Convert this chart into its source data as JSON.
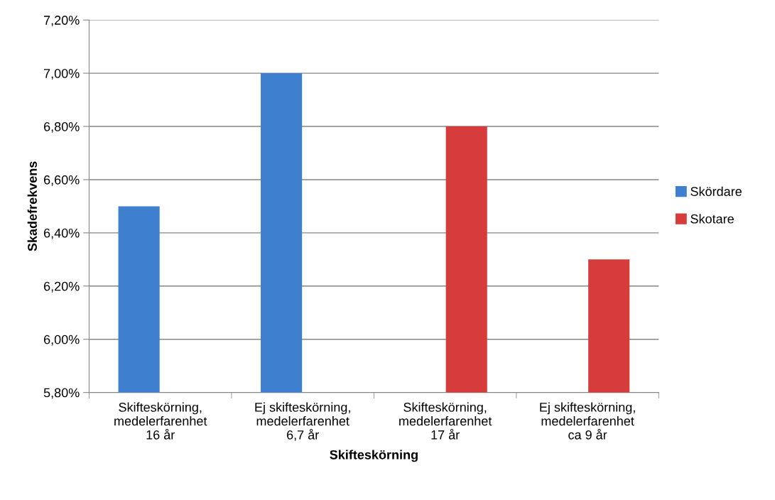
{
  "chart_data": {
    "type": "bar",
    "xlabel": "Skifteskörning",
    "ylabel": "Skadefrekvens",
    "categories": [
      "Skifteskörning,\nmedelerfarenhet\n16 år",
      "Ej skifteskörning,\nmedelerfarenhet\n6,7 år",
      "Skifteskörning,\nmedelerfarenhet\n17 år",
      "Ej skifteskörning,\nmedelerfarenhet\nca 9 år"
    ],
    "series": [
      {
        "name": "Skördare",
        "color": "#3f7fd0",
        "values": [
          6.5,
          7.0,
          null,
          null
        ]
      },
      {
        "name": "Skotare",
        "color": "#d63c3c",
        "values": [
          null,
          null,
          6.8,
          6.3
        ]
      }
    ],
    "ylim": [
      5.8,
      7.2
    ],
    "yticks": [
      {
        "value": 5.8,
        "label": "5,80%"
      },
      {
        "value": 6.0,
        "label": "6,00%"
      },
      {
        "value": 6.2,
        "label": "6,20%"
      },
      {
        "value": 6.4,
        "label": "6,40%"
      },
      {
        "value": 6.6,
        "label": "6,60%"
      },
      {
        "value": 6.8,
        "label": "6,80%"
      },
      {
        "value": 7.0,
        "label": "7,00%"
      },
      {
        "value": 7.2,
        "label": "7,20%"
      }
    ],
    "grid": "y",
    "legend": "right"
  }
}
